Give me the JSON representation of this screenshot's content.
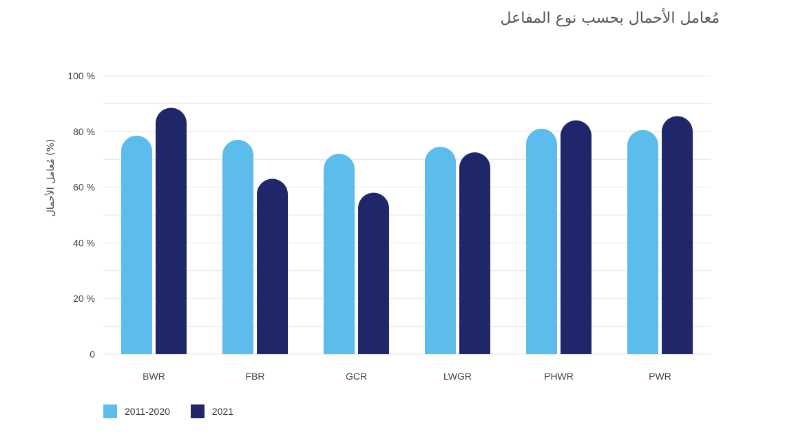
{
  "chart_data": {
    "type": "bar",
    "title": "مُعامل الأحمال بحسب نوع المفاعل",
    "xlabel": "",
    "ylabel": "مُعامل الأحمال (%)",
    "ylim": [
      0,
      100
    ],
    "yticks": [
      0,
      20,
      40,
      60,
      80,
      100
    ],
    "ytick_labels": [
      "0",
      "20 %",
      "40 %",
      "60 %",
      "80 %",
      "100 %"
    ],
    "grid": true,
    "legend_position": "bottom-left",
    "categories": [
      "BWR",
      "FBR",
      "GCR",
      "LWGR",
      "PHWR",
      "PWR"
    ],
    "series": [
      {
        "name": "2011-2020",
        "color": "#5cbdec",
        "values": [
          78.5,
          77,
          72,
          74.5,
          81,
          80.5
        ]
      },
      {
        "name": "2021",
        "color": "#20266a",
        "values": [
          88.5,
          63,
          58,
          72.5,
          84,
          85.5
        ]
      }
    ]
  },
  "colors": {
    "grid": "#e6e6e6",
    "axis_text": "#444444"
  }
}
